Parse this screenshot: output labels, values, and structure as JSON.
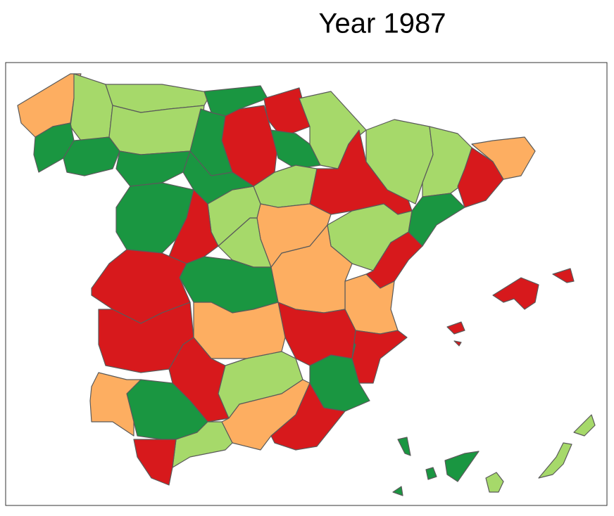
{
  "title": "Year 1987"
}
